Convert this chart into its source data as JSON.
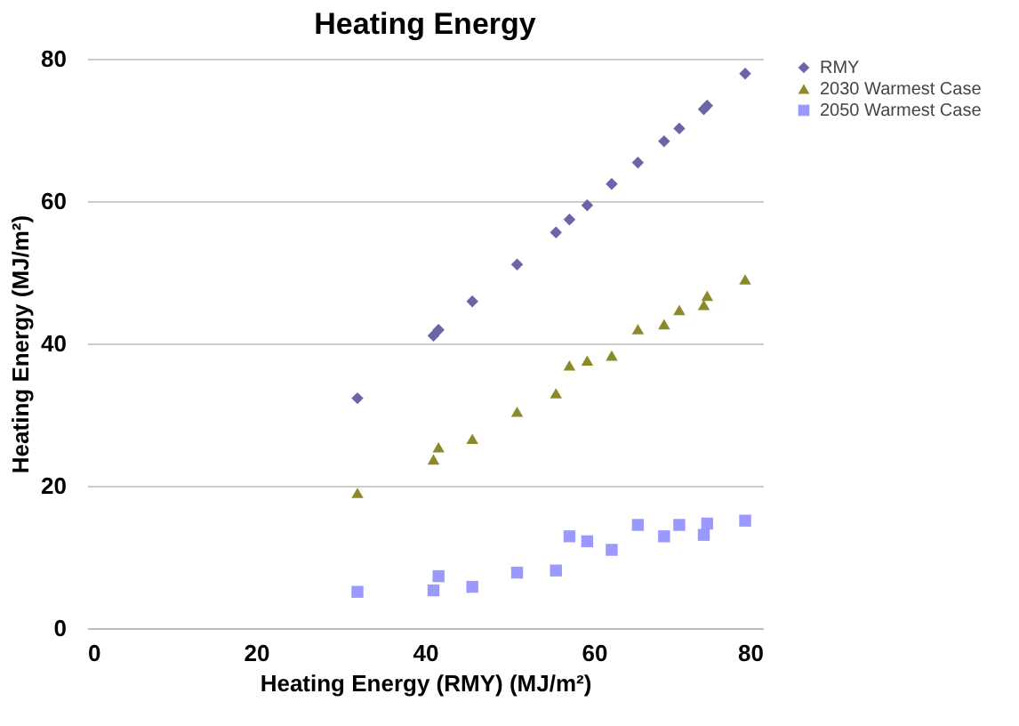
{
  "chart_data": {
    "type": "scatter",
    "title": "Heating Energy",
    "xlabel": "Heating Energy (RMY) (MJ/m²)",
    "ylabel": "Heating Energy (MJ/m²)",
    "x": [
      32.0,
      41.0,
      41.6,
      45.6,
      50.9,
      55.5,
      57.1,
      59.2,
      62.1,
      65.2,
      68.3,
      70.1,
      73.0,
      73.4,
      77.9
    ],
    "series": [
      {
        "name": "RMY",
        "color": "#6a64a8",
        "marker": "diamond",
        "values": [
          32.3,
          41.1,
          41.9,
          45.9,
          51.1,
          55.6,
          57.4,
          59.4,
          62.4,
          65.4,
          68.4,
          70.2,
          72.9,
          73.4,
          77.9
        ]
      },
      {
        "name": "2030 Warmest Case",
        "color": "#8a8a2a",
        "marker": "triangle",
        "values": [
          19.0,
          23.7,
          25.4,
          26.6,
          30.4,
          33.0,
          36.9,
          37.6,
          38.3,
          42.0,
          42.7,
          44.7,
          45.4,
          46.7,
          49.0
        ]
      },
      {
        "name": "2050 Warmest Case",
        "color": "#9999ff",
        "marker": "square",
        "values": [
          5.1,
          5.3,
          7.3,
          5.8,
          7.8,
          8.1,
          12.9,
          12.2,
          11.0,
          14.5,
          12.9,
          14.5,
          13.1,
          14.7,
          15.1
        ]
      }
    ],
    "xlim": [
      0,
      80
    ],
    "xticks": [
      0,
      20,
      40,
      60,
      80
    ],
    "ylim": [
      0,
      80
    ],
    "yticks": [
      0,
      20,
      40,
      60,
      80
    ],
    "grid": "y",
    "legend": "right"
  }
}
